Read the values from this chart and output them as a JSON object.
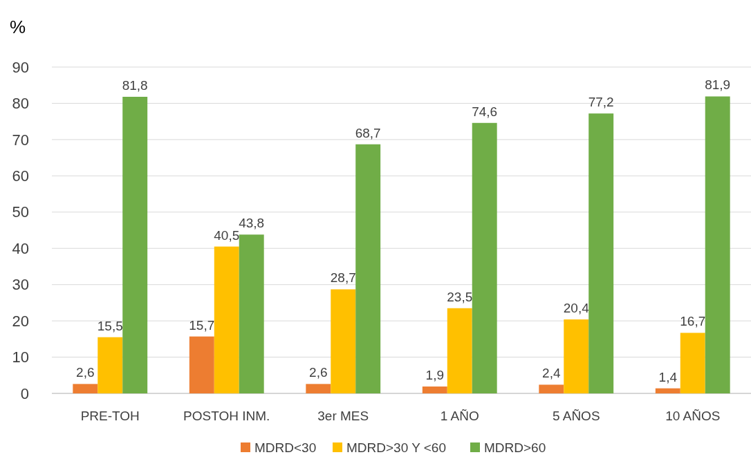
{
  "chart_data": {
    "type": "bar",
    "ylabel": "%",
    "categories": [
      "PRE-TOH",
      "POSTOH INM.",
      "3er MES",
      "1 AÑO",
      "5 AÑOS",
      "10 AÑOS"
    ],
    "series": [
      {
        "name": "MDRD<30",
        "color": "#ed7d31",
        "values": [
          2.6,
          15.7,
          2.6,
          1.9,
          2.4,
          1.4
        ],
        "value_labels": [
          "2,6",
          "15,7",
          "2,6",
          "1,9",
          "2,4",
          "1,4"
        ]
      },
      {
        "name": "MDRD>30 Y <60",
        "color": "#ffc000",
        "values": [
          15.5,
          40.5,
          28.7,
          23.5,
          20.4,
          16.7
        ],
        "value_labels": [
          "15,5",
          "40,5",
          "28,7",
          "23,5",
          "20,4",
          "16,7"
        ]
      },
      {
        "name": "MDRD>60",
        "color": "#70ad47",
        "values": [
          81.8,
          43.8,
          68.7,
          74.6,
          77.2,
          81.9
        ],
        "value_labels": [
          "81,8",
          "43,8",
          "68,7",
          "74,6",
          "77,2",
          "81,9"
        ]
      }
    ],
    "ylim": [
      0,
      90
    ],
    "yticks": [
      0,
      10,
      20,
      30,
      40,
      50,
      60,
      70,
      80,
      90
    ],
    "grid": "y",
    "legend": "bottom"
  }
}
